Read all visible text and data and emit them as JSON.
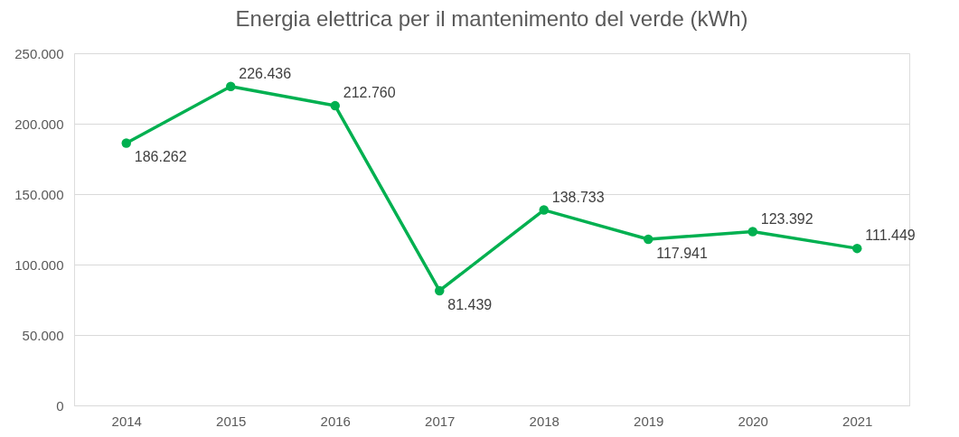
{
  "chart_data": {
    "type": "line",
    "title": "Energia elettrica per il mantenimento del verde (kWh)",
    "categories": [
      "2014",
      "2015",
      "2016",
      "2017",
      "2018",
      "2019",
      "2020",
      "2021"
    ],
    "series": [
      {
        "color": "#00b050",
        "values": [
          186262,
          226436,
          212760,
          81439,
          138733,
          117941,
          123392,
          111449
        ],
        "value_labels": [
          "186.262",
          "226.436",
          "212.760",
          "81.439",
          "138.733",
          "117.941",
          "123.392",
          "111.449"
        ]
      }
    ],
    "ylim": [
      0,
      250000
    ],
    "yticks": [
      {
        "value": 0,
        "label": "0"
      },
      {
        "value": 50000,
        "label": "50.000"
      },
      {
        "value": 100000,
        "label": "100.000"
      },
      {
        "value": 150000,
        "label": "150.000"
      },
      {
        "value": 200000,
        "label": "200.000"
      },
      {
        "value": 250000,
        "label": "250.000"
      }
    ],
    "grid": "y",
    "marker": "circle",
    "line_style": "solid"
  }
}
